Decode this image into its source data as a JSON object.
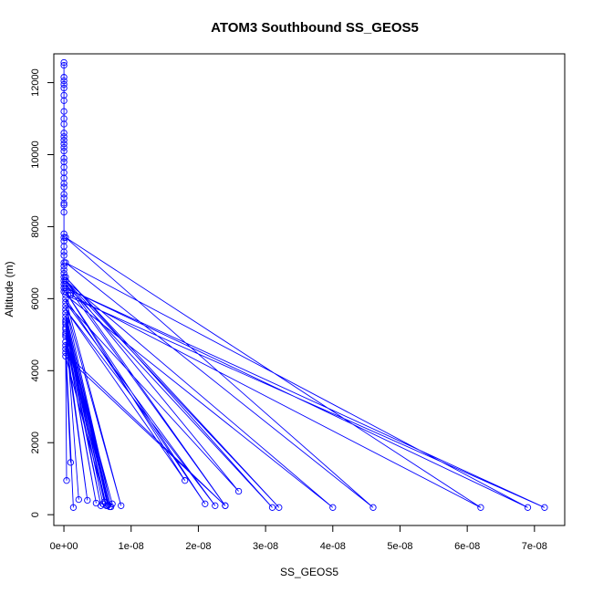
{
  "chart_data": {
    "type": "line",
    "title": "ATOM3 Southbound SS_GEOS5",
    "xlabel": "SS_GEOS5",
    "ylabel": "Altitude (m)",
    "xlim": [
      -1.5e-09,
      7.45e-08
    ],
    "ylim": [
      -300,
      12800
    ],
    "x_ticks": [
      0,
      1e-08,
      2e-08,
      3e-08,
      4e-08,
      5e-08,
      6e-08,
      7e-08
    ],
    "x_tick_labels": [
      "0e+00",
      "1e-08",
      "2e-08",
      "3e-08",
      "4e-08",
      "5e-08",
      "6e-08",
      "7e-08"
    ],
    "y_ticks": [
      0,
      2000,
      4000,
      6000,
      8000,
      10000,
      12000
    ],
    "y_tick_labels": [
      "0",
      "2000",
      "4000",
      "6000",
      "8000",
      "10000",
      "12000"
    ],
    "grid": false,
    "color": "#0000ff",
    "marker": "open-circle",
    "series": [
      {
        "x": [
          0,
          0,
          0,
          0,
          0,
          0,
          0,
          0,
          0,
          0,
          0,
          0,
          0,
          0,
          0,
          0,
          0,
          0,
          0,
          0,
          0,
          0,
          0,
          0,
          0,
          0,
          0,
          0,
          0,
          0,
          0,
          0,
          0,
          0,
          0,
          0,
          0,
          0,
          0,
          0,
          0,
          0,
          0,
          0,
          1e-09,
          1e-09,
          6.2e-08,
          2.5e-10,
          4.6e-08,
          2.5e-10,
          6.9e-08,
          2.5e-10,
          7.15e-08,
          2.5e-10,
          4e-08,
          2.5e-10,
          3.2e-08,
          2.5e-10,
          3.1e-08,
          2.5e-10,
          2.4e-08,
          2.5e-10,
          2.6e-08,
          2.5e-10,
          2.25e-08,
          2.5e-10,
          1.8e-08,
          2.5e-10,
          2.1e-08,
          2.5e-10,
          8.5e-09,
          2.5e-10,
          7e-09,
          2.5e-10,
          6.8e-09,
          2.5e-10,
          6.5e-09,
          2.5e-10,
          6e-09,
          2.5e-10,
          5.8e-09,
          2.5e-10,
          5.5e-09,
          2.5e-10,
          3.5e-09,
          2.5e-10,
          1.4e-09,
          2.5e-10,
          4e-10,
          2.5e-10,
          1e-09,
          2.5e-10,
          2.4e-08,
          2.5e-10,
          6.3e-09,
          2.5e-10,
          7.2e-09,
          2.5e-10,
          4.8e-09,
          2.5e-10,
          6.6e-09,
          2.5e-10,
          2.2e-09
        ],
        "y": [
          12560,
          12480,
          12150,
          12050,
          11950,
          11850,
          11650,
          11500,
          11200,
          11000,
          10850,
          10600,
          10500,
          10400,
          10300,
          10200,
          10100,
          9900,
          9800,
          9650,
          9500,
          9350,
          9200,
          9100,
          8900,
          8800,
          8650,
          8600,
          8400,
          7800,
          7700,
          7600,
          7450,
          7300,
          7200,
          7000,
          6900,
          6800,
          6700,
          6600,
          6500,
          6400,
          6300,
          6200,
          6150,
          6100,
          200,
          7700,
          200,
          7000,
          200,
          6300,
          200,
          6100,
          200,
          6500,
          200,
          6600,
          200,
          6400,
          250,
          6500,
          650,
          5900,
          250,
          5700,
          950,
          6200,
          300,
          6000,
          250,
          5800,
          220,
          5600,
          220,
          5400,
          250,
          5500,
          350,
          5300,
          300,
          5200,
          250,
          5000,
          400,
          4800,
          200,
          4700,
          950,
          4600,
          1450,
          4500,
          250,
          4400,
          250,
          5150,
          300,
          5050,
          320,
          4950,
          280,
          5350,
          420
        ]
      }
    ]
  }
}
